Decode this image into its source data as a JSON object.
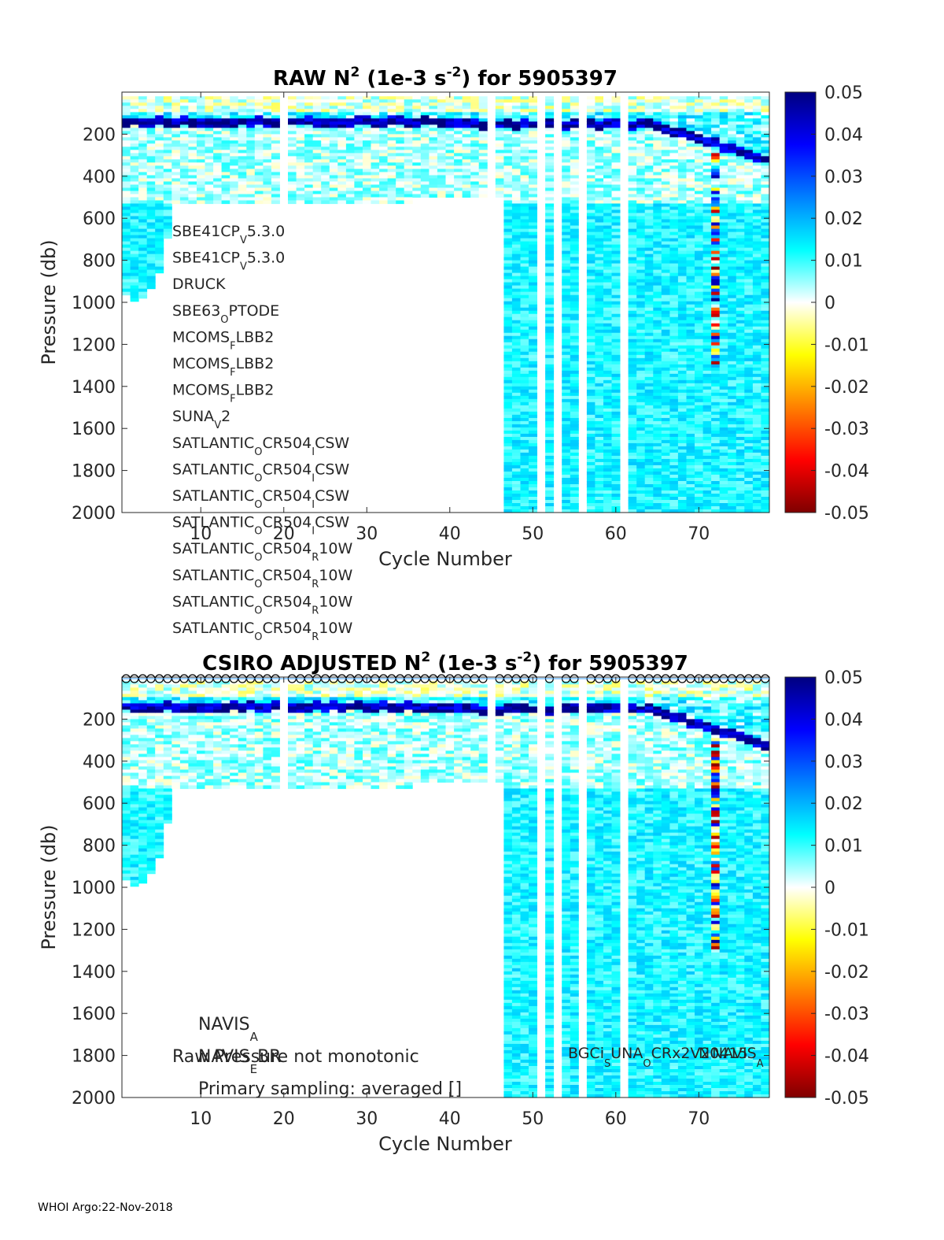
{
  "chart_data": [
    {
      "type": "heatmap",
      "title": "RAW N² (1e-3 s⁻²) for 5905397",
      "title_parts": {
        "pre": "RAW N",
        "sup1": "2",
        "mid": " (1e-3 s",
        "sup2": "-2",
        "post": ") for 5905397"
      },
      "xlabel": "Cycle Number",
      "ylabel": "Pressure (db)",
      "xlim": [
        1,
        78
      ],
      "ylim": [
        0,
        2000
      ],
      "xticks": [
        10,
        20,
        30,
        40,
        50,
        60,
        70
      ],
      "yticks": [
        200,
        400,
        600,
        800,
        1000,
        1200,
        1400,
        1600,
        1800,
        2000
      ],
      "clim": [
        -0.05,
        0.05
      ],
      "cticks": [
        "0.05",
        "0.04",
        "0.03",
        "0.02",
        "0.01",
        "0",
        "-0.01",
        "-0.02",
        "-0.03",
        "-0.04",
        "-0.05"
      ],
      "sensor_labels": [
        [
          "SBE41CP",
          "V",
          "5.3.0"
        ],
        [
          "SBE41CP",
          "V",
          "5.3.0"
        ],
        [
          "DRUCK"
        ],
        [
          "SBE63",
          "O",
          "PTODE"
        ],
        [
          "MCOMS",
          "F",
          "LBB2"
        ],
        [
          "MCOMS",
          "F",
          "LBB2"
        ],
        [
          "MCOMS",
          "F",
          "LBB2"
        ],
        [
          "SUNA",
          "V",
          "2"
        ],
        [
          "SATLANTIC",
          "O",
          "CR504",
          "I",
          "CSW"
        ],
        [
          "SATLANTIC",
          "O",
          "CR504",
          "I",
          "CSW"
        ],
        [
          "SATLANTIC",
          "O",
          "CR504",
          "I",
          "CSW"
        ],
        [
          "SATLANTIC",
          "O",
          "CR504",
          "I",
          "CSW"
        ],
        [
          "SATLANTIC",
          "O",
          "CR504",
          "R",
          "10W"
        ],
        [
          "SATLANTIC",
          "O",
          "CR504",
          "R",
          "10W"
        ],
        [
          "SATLANTIC",
          "O",
          "CR504",
          "R",
          "10W"
        ],
        [
          "SATLANTIC",
          "O",
          "CR504",
          "R",
          "10W"
        ]
      ],
      "profile_depth_db": [
        [
          1,
          960
        ],
        [
          2,
          990
        ],
        [
          3,
          970
        ],
        [
          4,
          930
        ],
        [
          5,
          860
        ],
        [
          6,
          690
        ],
        [
          7,
          520
        ],
        [
          8,
          520
        ],
        [
          9,
          520
        ],
        [
          10,
          520
        ],
        [
          11,
          520
        ],
        [
          12,
          520
        ],
        [
          13,
          520
        ],
        [
          14,
          520
        ],
        [
          15,
          520
        ],
        [
          16,
          520
        ],
        [
          17,
          520
        ],
        [
          18,
          520
        ],
        [
          19,
          520
        ],
        [
          21,
          520
        ],
        [
          22,
          520
        ],
        [
          23,
          520
        ],
        [
          24,
          520
        ],
        [
          25,
          520
        ],
        [
          26,
          520
        ],
        [
          27,
          520
        ],
        [
          28,
          520
        ],
        [
          29,
          520
        ],
        [
          30,
          520
        ],
        [
          31,
          520
        ],
        [
          32,
          520
        ],
        [
          33,
          520
        ],
        [
          34,
          520
        ],
        [
          35,
          520
        ],
        [
          36,
          500
        ],
        [
          37,
          500
        ],
        [
          38,
          500
        ],
        [
          39,
          500
        ],
        [
          40,
          500
        ],
        [
          41,
          500
        ],
        [
          42,
          500
        ],
        [
          43,
          500
        ],
        [
          44,
          500
        ],
        [
          46,
          500
        ],
        [
          47,
          2000
        ],
        [
          48,
          2000
        ],
        [
          49,
          2000
        ],
        [
          50,
          2000
        ],
        [
          52,
          2000
        ],
        [
          54,
          2000
        ],
        [
          55,
          2000
        ],
        [
          57,
          2000
        ],
        [
          58,
          2000
        ],
        [
          59,
          2000
        ],
        [
          60,
          2000
        ],
        [
          62,
          2000
        ],
        [
          63,
          2000
        ],
        [
          64,
          2000
        ],
        [
          65,
          2000
        ],
        [
          66,
          2000
        ],
        [
          67,
          2000
        ],
        [
          68,
          2000
        ],
        [
          69,
          2000
        ],
        [
          70,
          2000
        ],
        [
          71,
          2000
        ],
        [
          72,
          2000
        ],
        [
          73,
          2000
        ],
        [
          74,
          2000
        ],
        [
          75,
          2000
        ],
        [
          76,
          2000
        ],
        [
          77,
          2000
        ],
        [
          78,
          2000
        ]
      ]
    },
    {
      "type": "heatmap",
      "title": "CSIRO  ADJUSTED N² (1e-3 s⁻²) for 5905397",
      "title_parts": {
        "pre": "CSIRO  ADJUSTED N",
        "sup1": "2",
        "mid": " (1e-3 s",
        "sup2": "-2",
        "post": ") for 5905397"
      },
      "xlabel": "Cycle Number",
      "ylabel": "Pressure (db)",
      "xlim": [
        1,
        78
      ],
      "ylim": [
        0,
        2000
      ],
      "xticks": [
        10,
        20,
        30,
        40,
        50,
        60,
        70
      ],
      "yticks": [
        200,
        400,
        600,
        800,
        1000,
        1200,
        1400,
        1600,
        1800,
        2000
      ],
      "clim": [
        -0.05,
        0.05
      ],
      "cticks": [
        "0.05",
        "0.04",
        "0.03",
        "0.02",
        "0.01",
        "0",
        "-0.01",
        "-0.02",
        "-0.03",
        "-0.04",
        "-0.05"
      ],
      "surface_markers": "o",
      "annotations": {
        "navis_a": [
          "NAVIS",
          "A"
        ],
        "navis_ebr": [
          "NAVIS",
          "E",
          "BR"
        ],
        "raw_pressure": "Raw Pressure not monotonic",
        "primary_sampling": "Primary sampling: averaged []",
        "bgc": [
          "BGCi",
          "S",
          "UNA",
          "O",
          "CRx2V2"
        ],
        "n0415": [
          "N0415"
        ],
        "navis_a_right": [
          "NAVIS",
          "A"
        ]
      }
    }
  ],
  "footer": "WHOI Argo:22-Nov-2018"
}
